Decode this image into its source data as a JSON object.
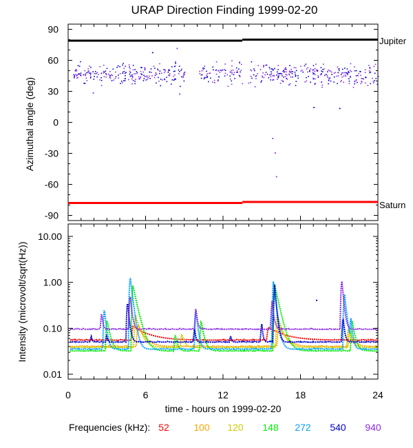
{
  "chart_data": [
    {
      "type": "scatter",
      "title": "URAP Direction Finding  1999-02-20",
      "ylabel": "Azimuthal angle (deg)",
      "ylim": [
        -95,
        95
      ],
      "yticks": [
        90,
        60,
        30,
        0,
        -30,
        -60,
        -90
      ],
      "xlim": [
        0,
        24
      ],
      "reference_lines": [
        {
          "name": "Jupiter",
          "color": "#000000",
          "segments": [
            [
              0,
              13.5,
              79
            ],
            [
              13.5,
              24,
              80
            ]
          ]
        },
        {
          "name": "Saturn",
          "color": "#ff0000",
          "segments": [
            [
              0,
              13.5,
              -78
            ],
            [
              13.5,
              24,
              -77
            ]
          ]
        }
      ],
      "cluster": {
        "x_range": [
          0,
          24
        ],
        "y_range": [
          32,
          62
        ],
        "colors": [
          "#0000cc",
          "#8a2be2"
        ],
        "gaps": [
          [
            9.0,
            10.1
          ],
          [
            13.6,
            13.9
          ]
        ]
      },
      "outliers": [
        {
          "x": 1.9,
          "y": 29,
          "color": "#8a2be2"
        },
        {
          "x": 6.5,
          "y": 68,
          "color": "#0000cc"
        },
        {
          "x": 8.4,
          "y": 72,
          "color": "#8a2be2"
        },
        {
          "x": 8.6,
          "y": 28,
          "color": "#8a2be2"
        },
        {
          "x": 15.8,
          "y": -15,
          "color": "#8a2be2"
        },
        {
          "x": 16.0,
          "y": -29,
          "color": "#8a2be2"
        },
        {
          "x": 16.1,
          "y": -52,
          "color": "#8a2be2"
        },
        {
          "x": 19.0,
          "y": 15,
          "color": "#0000cc"
        },
        {
          "x": 21.0,
          "y": 14,
          "color": "#0000cc"
        },
        {
          "x": 5.0,
          "y": 41,
          "color": "#8a2be2"
        },
        {
          "x": 11.3,
          "y": 39,
          "color": "#8a2be2"
        }
      ]
    },
    {
      "type": "line",
      "xlabel": "time - hours on 1999-02-20",
      "ylabel": "Intensity (microvolt/sqrt(Hz))",
      "yscale": "log",
      "ylim": [
        0.01,
        10
      ],
      "yticks": [
        10,
        1,
        0.1,
        0.01
      ],
      "ytick_labels": [
        "10.00",
        "1.00",
        "0.10",
        "0.01"
      ],
      "xlim": [
        0,
        24
      ],
      "xticks": [
        0,
        6,
        12,
        18,
        24
      ],
      "legend_prefix": "Frequencies (kHz):",
      "series": [
        {
          "name": "52",
          "color": "#ff0000",
          "base": 0.055,
          "bursts": [
            [
              5.0,
              0.11,
              3.0
            ],
            [
              15.5,
              0.105,
              3.0
            ]
          ]
        },
        {
          "name": "100",
          "color": "#ffa500",
          "base": 0.04,
          "bursts": [
            [
              5.4,
              0.12,
              1.2
            ],
            [
              16.3,
              0.12,
              1.2
            ],
            [
              21.8,
              0.085,
              0.8
            ]
          ]
        },
        {
          "name": "120",
          "color": "#cccc00",
          "base": 0.038,
          "bursts": [
            [
              5.2,
              0.2,
              0.9
            ],
            [
              8.8,
              0.075,
              0.5
            ],
            [
              16.2,
              0.2,
              0.9
            ],
            [
              21.7,
              0.1,
              0.6
            ]
          ]
        },
        {
          "name": "148",
          "color": "#00ee00",
          "base": 0.032,
          "bursts": [
            [
              3.0,
              0.16,
              0.55
            ],
            [
              5.0,
              0.9,
              0.8
            ],
            [
              8.3,
              0.072,
              0.4
            ],
            [
              10.3,
              0.15,
              0.5
            ],
            [
              16.0,
              0.9,
              0.8
            ],
            [
              22.0,
              0.15,
              0.5
            ]
          ]
        },
        {
          "name": "272",
          "color": "#00a0ff",
          "base": 0.035,
          "bursts": [
            [
              2.8,
              0.28,
              0.35
            ],
            [
              4.8,
              1.4,
              0.45
            ],
            [
              9.9,
              0.25,
              0.35
            ],
            [
              15.9,
              1.05,
              0.45
            ],
            [
              21.4,
              0.6,
              0.4
            ],
            [
              21.9,
              0.18,
              0.3
            ]
          ]
        },
        {
          "name": "540",
          "color": "#0000cc",
          "base": 0.05,
          "bursts": [
            [
              1.8,
              0.068,
              0.15
            ],
            [
              3.0,
              0.07,
              0.15
            ],
            [
              4.6,
              0.4,
              0.3
            ],
            [
              9.8,
              0.1,
              0.2
            ],
            [
              12.6,
              0.07,
              0.15
            ],
            [
              15.0,
              0.13,
              0.2
            ],
            [
              16.0,
              0.9,
              0.3
            ],
            [
              21.3,
              0.18,
              0.25
            ]
          ]
        },
        {
          "name": "940",
          "color": "#8a2be2",
          "base": 0.095,
          "bursts": [
            [
              2.6,
              0.22,
              0.2
            ],
            [
              4.8,
              0.55,
              0.3
            ],
            [
              9.9,
              0.28,
              0.25
            ],
            [
              15.8,
              0.4,
              0.3
            ],
            [
              21.2,
              1.2,
              0.3
            ]
          ]
        }
      ],
      "extra_points": [
        {
          "x": 19.2,
          "y": 0.42,
          "color": "#0000cc"
        }
      ]
    }
  ],
  "labels": {
    "title": "URAP Direction Finding  1999-02-20",
    "top_ylabel": "Azimuthal angle (deg)",
    "bottom_ylabel": "Intensity (microvolt/sqrt(Hz))",
    "xlabel": "time - hours on 1999-02-20",
    "jupiter": "Jupiter",
    "saturn": "Saturn",
    "legend_prefix": "Frequencies (kHz):"
  }
}
